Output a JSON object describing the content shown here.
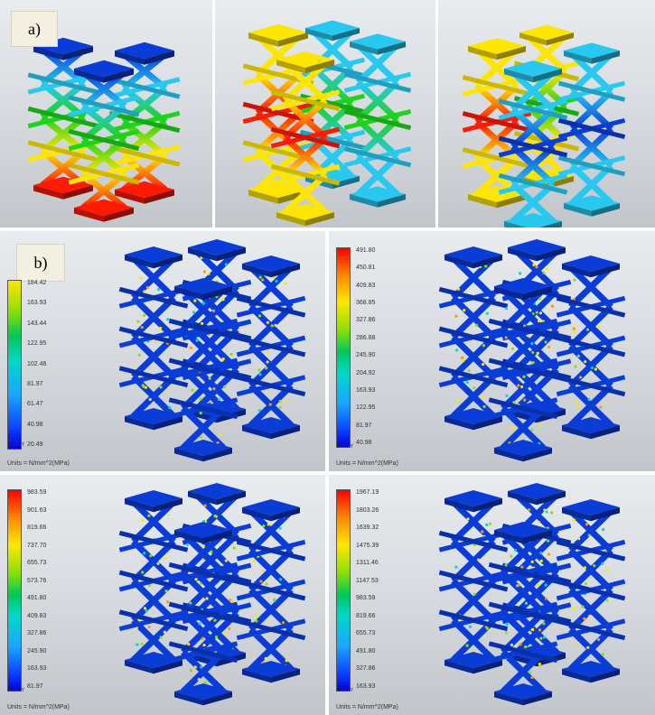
{
  "panel_a_label": "a)",
  "panel_b_label": "b)",
  "colors": {
    "red": "#ff1a00",
    "yellow": "#ffe600",
    "green": "#1fd21a",
    "cyan": "#28c8f0",
    "blue": "#0a3cd8"
  },
  "legends": [
    {
      "ticks": [
        "184.42",
        "163.93",
        "143.44",
        "122.95",
        "102.46",
        "81.97",
        "61.47",
        "40.98",
        "20.49"
      ],
      "origin": "0.00",
      "units": "Units = N/mm^2(MPa)"
    },
    {
      "ticks": [
        "491.80",
        "450.81",
        "409.83",
        "368.85",
        "327.86",
        "286.88",
        "245.90",
        "204.92",
        "163.93",
        "122.95",
        "81.97",
        "40.98"
      ],
      "origin": "0.00",
      "units": "Units = N/mm^2(MPa)"
    },
    {
      "ticks": [
        "983.59",
        "901.63",
        "819.66",
        "737.70",
        "655.73",
        "573.76",
        "491.80",
        "409.83",
        "327.86",
        "245.90",
        "163.93",
        "81.97"
      ],
      "origin": "0.00",
      "units": "Units = N/mm^2(MPa)"
    },
    {
      "ticks": [
        "1967.19",
        "1803.26",
        "1639.32",
        "1475.39",
        "1311.46",
        "1147.53",
        "983.59",
        "819.66",
        "655.73",
        "491.80",
        "327.86",
        "163.93"
      ],
      "origin": "0.00",
      "units": "Units = N/mm^2(MPa)"
    }
  ],
  "axis_label": "Y"
}
